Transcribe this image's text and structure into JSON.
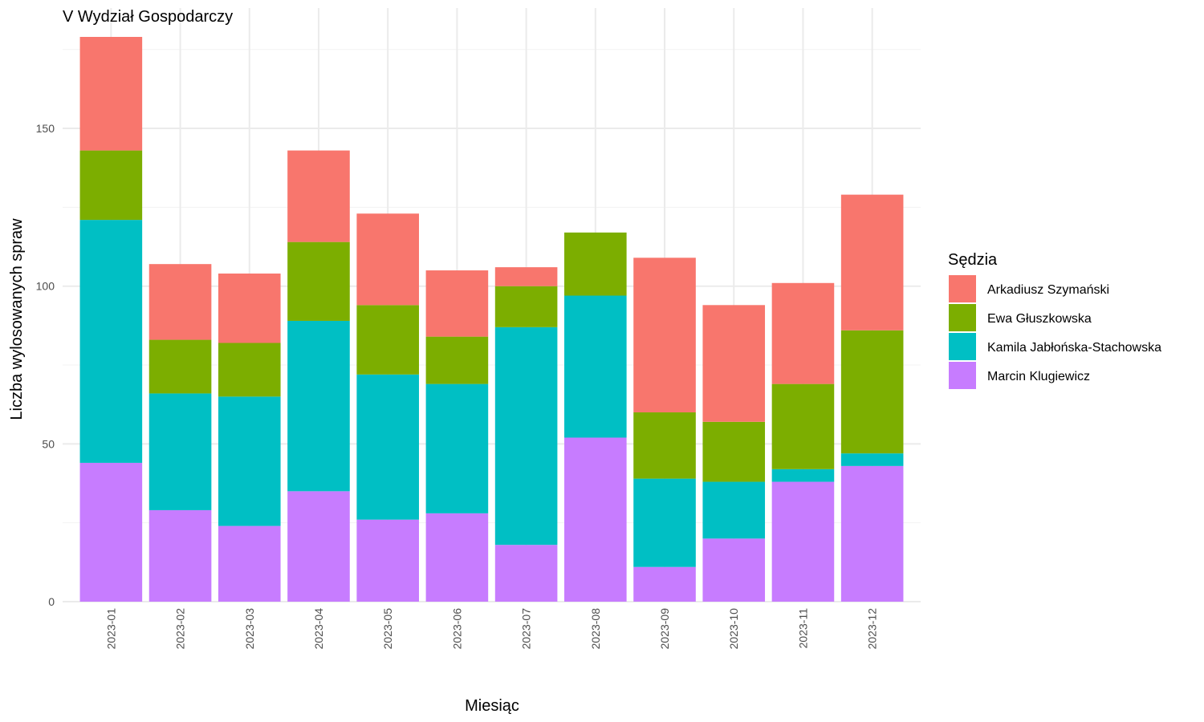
{
  "chart_data": {
    "type": "bar",
    "stacked": true,
    "title": "V Wydział Gospodarczy",
    "xlabel": "Miesiąc",
    "ylabel": "Liczba wylosowanych spraw",
    "ylim": [
      0,
      179
    ],
    "yticks": [
      0,
      50,
      100,
      150
    ],
    "grid": true,
    "legend": {
      "title": "Sędzia",
      "position": "right"
    },
    "categories": [
      "2023-01",
      "2023-02",
      "2023-03",
      "2023-04",
      "2023-05",
      "2023-06",
      "2023-07",
      "2023-08",
      "2023-09",
      "2023-10",
      "2023-11",
      "2023-12"
    ],
    "series": [
      {
        "name": "Marcin Klugiewicz",
        "color": "#C77CFF",
        "values": [
          44,
          29,
          24,
          35,
          26,
          28,
          18,
          52,
          11,
          20,
          38,
          43
        ]
      },
      {
        "name": "Kamila Jabłońska-Stachowska",
        "color": "#00BFC4",
        "values": [
          77,
          37,
          41,
          54,
          46,
          41,
          69,
          45,
          28,
          18,
          4,
          4
        ]
      },
      {
        "name": "Ewa Głuszkowska",
        "color": "#7CAE00",
        "values": [
          22,
          17,
          17,
          25,
          22,
          15,
          13,
          20,
          21,
          19,
          27,
          39
        ]
      },
      {
        "name": "Arkadiusz Szymański",
        "color": "#F8766D",
        "values": [
          36,
          24,
          22,
          29,
          29,
          21,
          6,
          0,
          49,
          37,
          32,
          43
        ]
      }
    ],
    "legend_order": [
      "Arkadiusz Szymański",
      "Ewa Głuszkowska",
      "Kamila Jabłońska-Stachowska",
      "Marcin Klugiewicz"
    ]
  }
}
